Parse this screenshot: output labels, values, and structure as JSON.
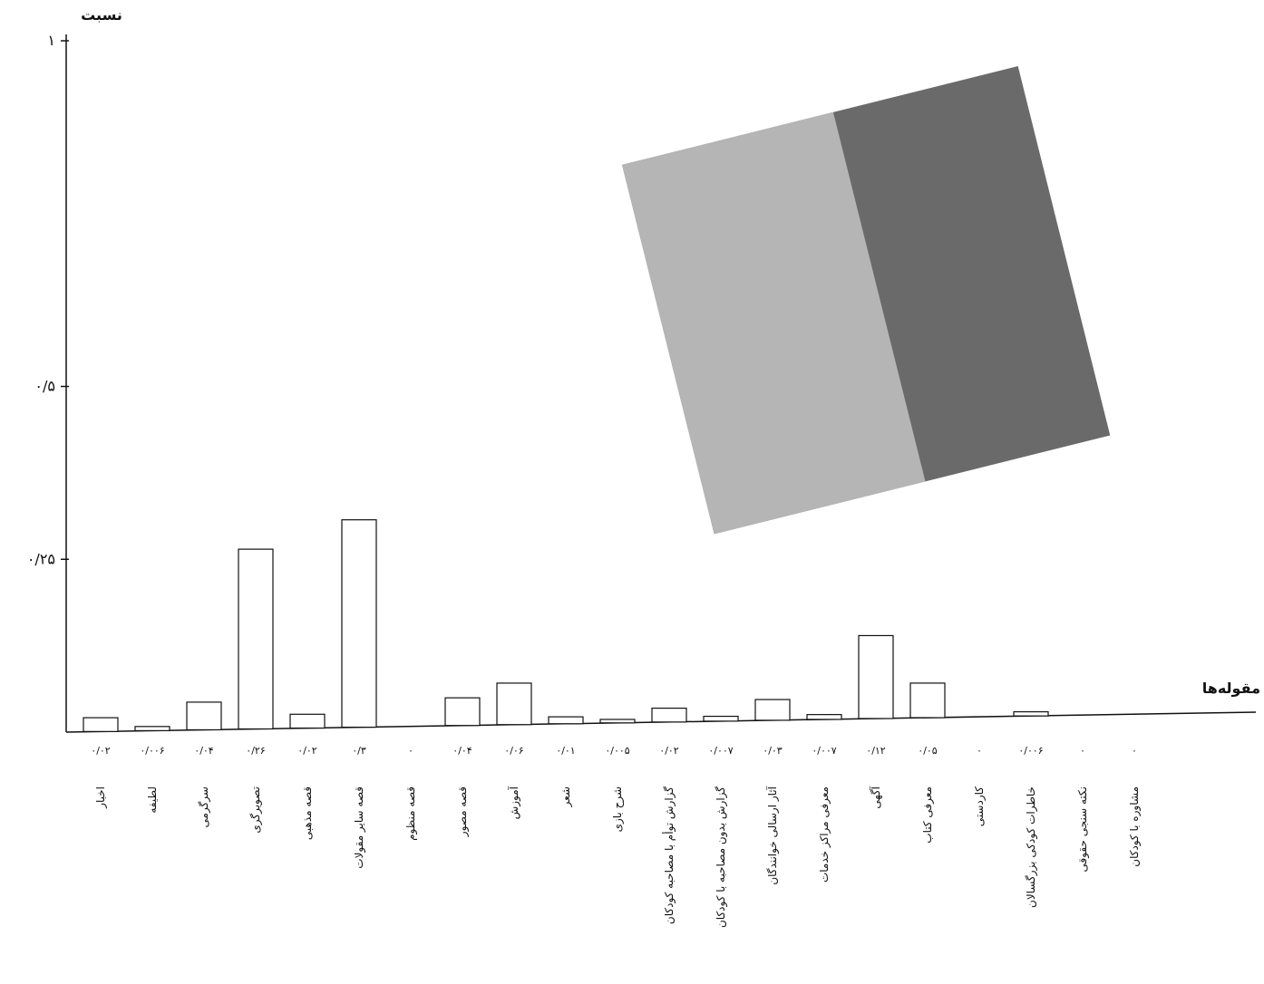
{
  "chart_data": {
    "type": "bar",
    "y_label": "نسبت",
    "x_label": "مقوله‌ها",
    "categories": [
      "اخبار",
      "لطیفه",
      "سرگرمی",
      "تصویرگری",
      "قصه مذهبی",
      "قصه سایر مقولات",
      "قصه منظوم",
      "قصه مصور",
      "آموزش",
      "شعر",
      "شرح بازی",
      "گزارش توأم با مصاحبه کودکان",
      "گزارش بدون مصاحبه با کودکان",
      "آثار ارسالی خوانندگان",
      "معرفی مراکز خدمات",
      "آگهی",
      "معرفی کتاب",
      "کاردستی",
      "خاطرات کودکی بزرگسالان",
      "نکته سنجی حقوقی",
      "مشاوره با کودکان"
    ],
    "values": [
      0.02,
      0.006,
      0.04,
      0.26,
      0.02,
      0.3,
      0,
      0.04,
      0.06,
      0.01,
      0.005,
      0.02,
      0.007,
      0.03,
      0.007,
      0.12,
      0.05,
      0,
      0.006,
      0,
      0
    ],
    "value_labels": [
      "۰/۰۲",
      "۰/۰۰۶",
      "۰/۰۴",
      "۰/۲۶",
      "۰/۰۲",
      "۰/۳",
      "۰",
      "۰/۰۴",
      "۰/۰۶",
      "۰/۰۱",
      "۰/۰۰۵",
      "۰/۰۲",
      "۰/۰۰۷",
      "۰/۰۳",
      "۰/۰۰۷",
      "۰/۱۲",
      "۰/۰۵",
      "۰",
      "۰/۰۰۶",
      "۰",
      "۰"
    ],
    "color": "#ffffff",
    "ylim": [
      0,
      1
    ],
    "yticks": [
      {
        "value": 0.25,
        "label": "۰/۲۵"
      },
      {
        "value": 0.5,
        "label": "۰/۵"
      },
      {
        "value": 1,
        "label": "۱"
      }
    ]
  }
}
